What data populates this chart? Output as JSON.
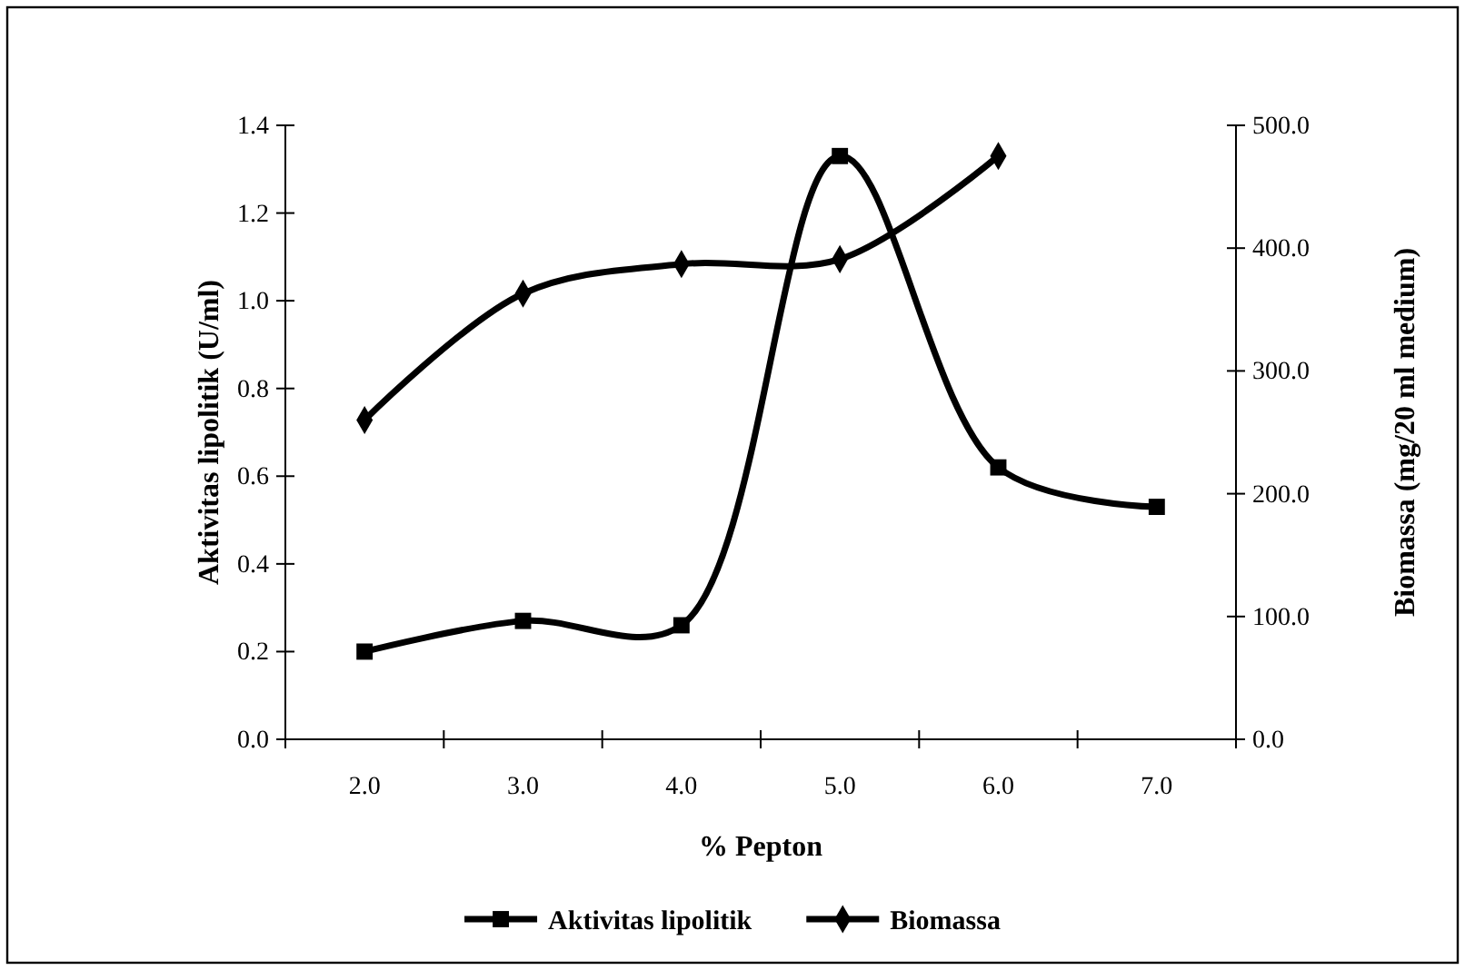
{
  "chart_data": {
    "type": "line",
    "xlabel": "% Pepton",
    "ylabel": "Aktivitas lipolitik (U/ml)",
    "y2label": "Biomassa (mg/20 ml medium)",
    "categories": [
      "2.0",
      "3.0",
      "4.0",
      "5.0",
      "6.0",
      "7.0"
    ],
    "ylim": [
      0,
      1.4
    ],
    "yticks": [
      {
        "value": 0,
        "label": "0.0"
      },
      {
        "value": 0.2,
        "label": "0.2"
      },
      {
        "value": 0.4,
        "label": "0.4"
      },
      {
        "value": 0.6,
        "label": "0.6"
      },
      {
        "value": 0.8,
        "label": "0.8"
      },
      {
        "value": 1,
        "label": "1.0"
      },
      {
        "value": 1.2,
        "label": "1.2"
      },
      {
        "value": 1.4,
        "label": "1.4"
      }
    ],
    "y2lim": [
      0,
      500
    ],
    "y2ticks": [
      {
        "value": 0,
        "label": "0.0"
      },
      {
        "value": 100,
        "label": "100.0"
      },
      {
        "value": 200,
        "label": "200.0"
      },
      {
        "value": 300,
        "label": "300.0"
      },
      {
        "value": 400,
        "label": "400.0"
      },
      {
        "value": 500,
        "label": "500.0"
      }
    ],
    "series": [
      {
        "name": "Aktivitas lipolitik",
        "color": "#000000",
        "marker": "square",
        "values": [
          0.2,
          0.27,
          0.26,
          1.33,
          0.62,
          0.53
        ]
      },
      {
        "name": "Biomassa",
        "color": "#000000",
        "marker": "diamond",
        "axis": "y2",
        "values": [
          260,
          363,
          387,
          391,
          475,
          null
        ]
      }
    ],
    "legend": "bottom",
    "grid": false,
    "line_style": "solid"
  }
}
